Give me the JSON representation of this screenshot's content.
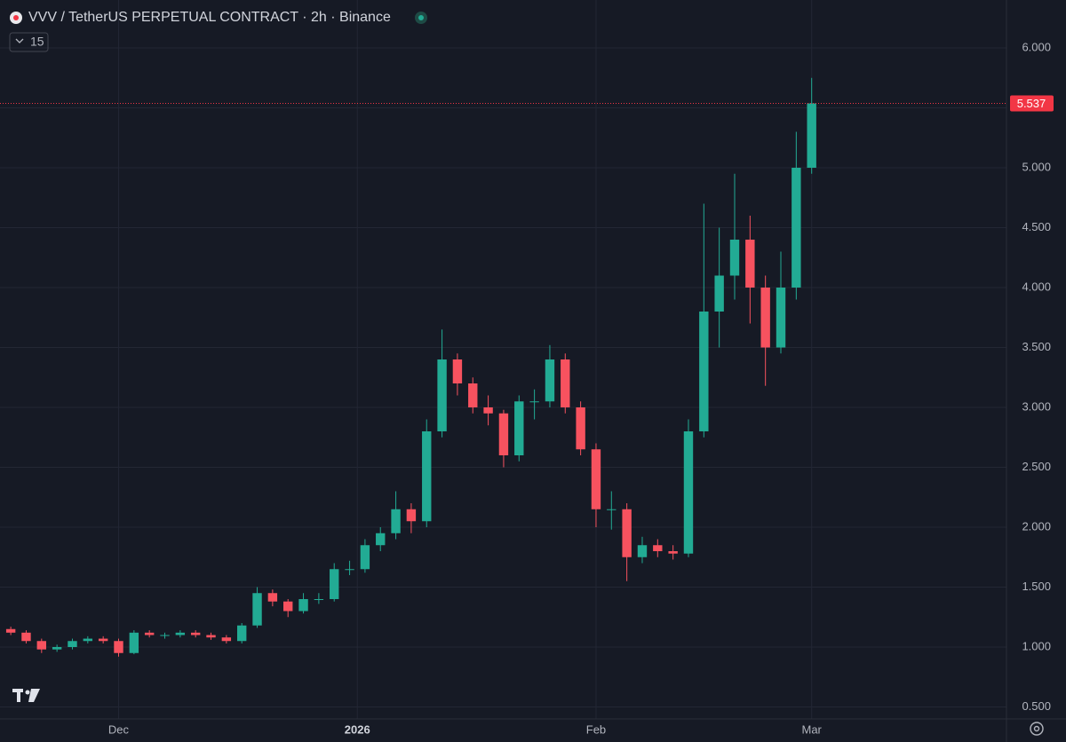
{
  "chart_data": {
    "type": "candlestick",
    "title": "VVV / TetherUS PERPETUAL CONTRACT · 2h · Binance",
    "indicator_label": "15",
    "x": [
      -16,
      -14,
      -12,
      -10,
      -8,
      -6,
      -4,
      -2,
      0,
      2,
      4,
      6,
      8,
      10,
      12,
      14,
      16,
      18,
      20,
      22,
      24,
      26,
      28,
      30,
      32,
      34,
      36,
      38,
      40,
      42,
      44,
      46,
      48,
      50,
      52,
      54,
      56,
      58,
      60,
      62,
      64,
      66,
      68,
      70,
      72,
      74,
      76,
      78,
      80,
      82,
      84,
      86,
      88,
      90
    ],
    "open": [
      1.18,
      1.15,
      1.12,
      1.05,
      0.98,
      1.0,
      1.05,
      1.07,
      1.05,
      0.95,
      1.12,
      1.1,
      1.1,
      1.12,
      1.1,
      1.08,
      1.05,
      1.18,
      1.45,
      1.38,
      1.3,
      1.4,
      1.4,
      1.65,
      1.65,
      1.85,
      1.95,
      2.15,
      2.05,
      2.8,
      3.4,
      3.2,
      3.0,
      2.95,
      2.6,
      3.05,
      3.05,
      3.4,
      3.0,
      2.65,
      2.15,
      2.15,
      1.75,
      1.85,
      1.8,
      1.78,
      2.8,
      3.8,
      4.1,
      4.4,
      4.0,
      3.5,
      4.0,
      5.0
    ],
    "high": [
      1.2,
      1.17,
      1.14,
      1.07,
      1.02,
      1.07,
      1.09,
      1.09,
      1.07,
      1.14,
      1.14,
      1.12,
      1.14,
      1.14,
      1.12,
      1.1,
      1.2,
      1.5,
      1.48,
      1.4,
      1.45,
      1.45,
      1.7,
      1.72,
      1.9,
      2.0,
      2.3,
      2.2,
      2.9,
      3.65,
      3.45,
      3.25,
      3.1,
      2.98,
      3.1,
      3.15,
      3.52,
      3.45,
      3.05,
      2.7,
      2.3,
      2.2,
      1.92,
      1.9,
      1.85,
      2.9,
      4.7,
      4.5,
      4.95,
      4.6,
      4.1,
      4.3,
      5.3,
      5.75
    ],
    "low": [
      1.13,
      1.1,
      1.03,
      0.95,
      0.96,
      0.98,
      1.03,
      1.03,
      0.92,
      0.94,
      1.08,
      1.07,
      1.08,
      1.08,
      1.06,
      1.03,
      1.03,
      1.16,
      1.34,
      1.25,
      1.28,
      1.36,
      1.38,
      1.6,
      1.62,
      1.8,
      1.9,
      1.95,
      2.0,
      2.75,
      3.1,
      2.95,
      2.85,
      2.5,
      2.55,
      2.9,
      3.0,
      2.95,
      2.6,
      2.0,
      1.98,
      1.55,
      1.7,
      1.75,
      1.73,
      1.75,
      2.75,
      3.5,
      3.9,
      3.7,
      3.18,
      3.45,
      3.9,
      4.95
    ],
    "close": [
      1.15,
      1.12,
      1.05,
      0.98,
      1.0,
      1.05,
      1.07,
      1.05,
      0.95,
      1.12,
      1.1,
      1.1,
      1.12,
      1.1,
      1.08,
      1.05,
      1.18,
      1.45,
      1.38,
      1.3,
      1.4,
      1.4,
      1.65,
      1.65,
      1.85,
      1.95,
      2.15,
      2.05,
      2.8,
      3.4,
      3.2,
      3.0,
      2.95,
      2.6,
      3.05,
      3.05,
      3.4,
      3.0,
      2.65,
      2.15,
      2.15,
      1.75,
      1.85,
      1.8,
      1.78,
      2.8,
      3.8,
      4.1,
      4.4,
      4.0,
      3.5,
      4.0,
      5.0,
      5.537
    ],
    "up_color": "#22ab94",
    "down_color": "#f7525f",
    "last_price": 5.537,
    "last_price_color": "#f23645",
    "xlim": [
      -15.4,
      115.3
    ],
    "xticks": [
      {
        "value": 0,
        "label": "Dec"
      },
      {
        "value": 31,
        "label": "2026"
      },
      {
        "value": 62,
        "label": "Feb"
      },
      {
        "value": 90,
        "label": "Mar"
      }
    ],
    "ylim": [
      0.4,
      6.4
    ],
    "yticks": [
      {
        "value": 0.5,
        "label": "0.500"
      },
      {
        "value": 1,
        "label": "1.000"
      },
      {
        "value": 1.5,
        "label": "1.500"
      },
      {
        "value": 2,
        "label": "2.000"
      },
      {
        "value": 2.5,
        "label": "2.500"
      },
      {
        "value": 3,
        "label": "3.000"
      },
      {
        "value": 3.5,
        "label": "3.500"
      },
      {
        "value": 4,
        "label": "4.000"
      },
      {
        "value": 4.5,
        "label": "4.500"
      },
      {
        "value": 5,
        "label": "5.000"
      },
      {
        "value": 5.5,
        "label": "5.500"
      },
      {
        "value": 6,
        "label": "6.000"
      }
    ],
    "grid": true
  }
}
